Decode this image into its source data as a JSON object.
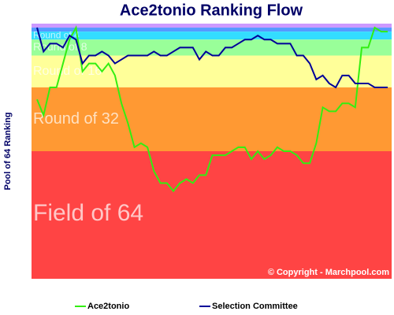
{
  "chart_data": {
    "type": "line",
    "title": "Ace2tonio Ranking Flow",
    "y_label": "Pool of 64 Ranking",
    "annotation": "© Copyright - Marchpool.com",
    "ylim": [
      0,
      64
    ],
    "bands": [
      {
        "from": 0,
        "to": 1,
        "color": "#cc99ff"
      },
      {
        "from": 1,
        "to": 2,
        "color": "#5599ff"
      },
      {
        "from": 2,
        "to": 4,
        "color": "#33ddff",
        "label": "Round of 4"
      },
      {
        "from": 4,
        "to": 8,
        "color": "#99ff99",
        "label": "Round of 8"
      },
      {
        "from": 8,
        "to": 16,
        "color": "#ffff99",
        "label": "Round of 16"
      },
      {
        "from": 16,
        "to": 32,
        "color": "#ff9933",
        "label": "Round of 32"
      },
      {
        "from": 32,
        "to": 64,
        "color": "#ff4444",
        "label": "Field of 64"
      }
    ],
    "series": [
      {
        "name": "Ace2tonio",
        "color": "#33ee11",
        "values": [
          19,
          23,
          16,
          16,
          10,
          4,
          1,
          12,
          10,
          10,
          12,
          10,
          13,
          20,
          25,
          31,
          30,
          31,
          37,
          40,
          40,
          42,
          40,
          39,
          40,
          38,
          38,
          33,
          33,
          33,
          32,
          31,
          31,
          34,
          32,
          34,
          33,
          31,
          32,
          32,
          33,
          35,
          35,
          30,
          21,
          22,
          22,
          20,
          20,
          21,
          6,
          6,
          1,
          2,
          2
        ]
      },
      {
        "name": "Selection Committee",
        "color": "#000099",
        "values": [
          1,
          7,
          5,
          5,
          6,
          3,
          4,
          10,
          8,
          8,
          7,
          8,
          10,
          9,
          8,
          8,
          8,
          8,
          7,
          8,
          8,
          7,
          6,
          6,
          6,
          9,
          7,
          8,
          8,
          6,
          6,
          5,
          4,
          4,
          3,
          4,
          4,
          5,
          5,
          5,
          8,
          8,
          10,
          14,
          13,
          15,
          16,
          13,
          13,
          15,
          15,
          15,
          16,
          16,
          16
        ]
      }
    ]
  }
}
